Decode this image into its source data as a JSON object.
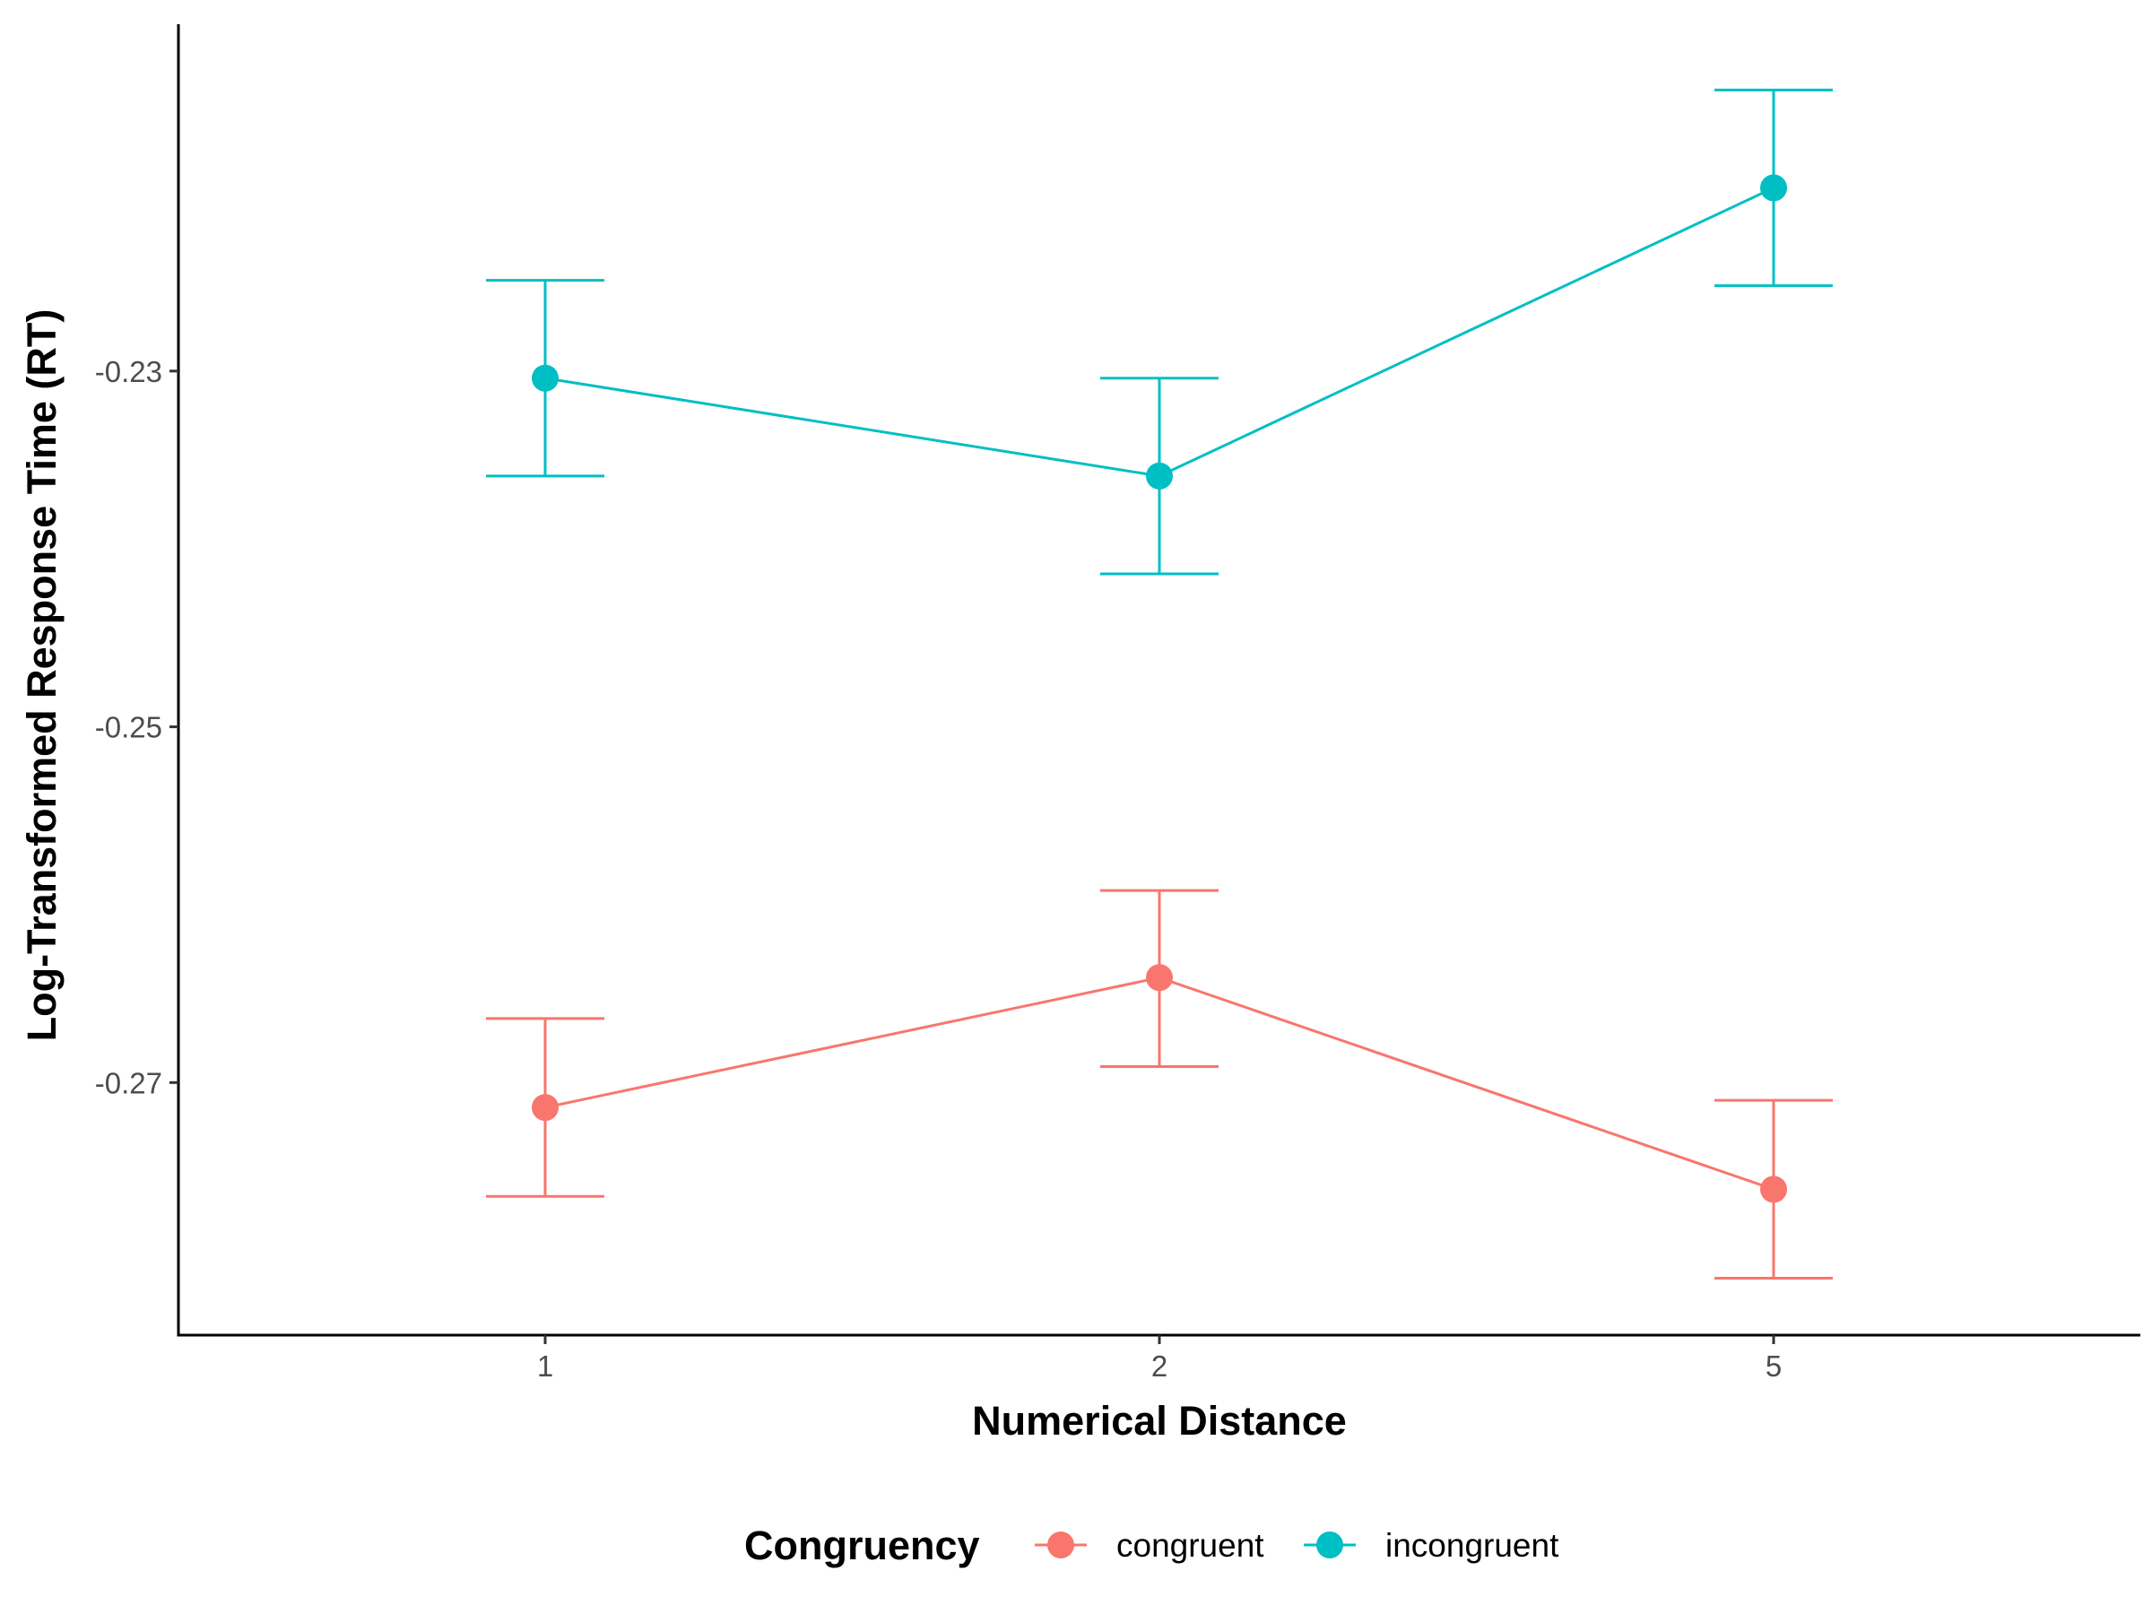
{
  "chart_data": {
    "type": "line",
    "title": "",
    "xlabel": "Numerical Distance",
    "ylabel": "Log-Transformed Response Time (RT)",
    "categories": [
      "1",
      "2",
      "5"
    ],
    "y_ticks": [
      "-0.23",
      "-0.25",
      "-0.27"
    ],
    "y_tick_values": [
      -0.23,
      -0.25,
      -0.27
    ],
    "ylim": [
      -0.2842,
      -0.2105
    ],
    "grid": false,
    "legend": {
      "title": "Congruency",
      "position": "bottom"
    },
    "series": [
      {
        "name": "congruent",
        "color": "#F8766D",
        "values": [
          -0.2714,
          -0.2641,
          -0.276
        ],
        "upper": [
          -0.2664,
          -0.2592,
          -0.271
        ],
        "lower": [
          -0.2764,
          -0.2691,
          -0.281
        ]
      },
      {
        "name": "incongruent",
        "color": "#00BFC4",
        "values": [
          -0.2304,
          -0.2359,
          -0.2197
        ],
        "upper": [
          -0.2249,
          -0.2304,
          -0.2142
        ],
        "lower": [
          -0.2359,
          -0.2414,
          -0.2252
        ]
      }
    ]
  }
}
